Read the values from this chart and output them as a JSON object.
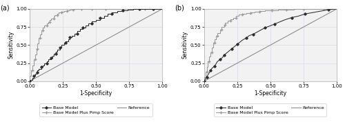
{
  "fig_width": 5.0,
  "fig_height": 1.9,
  "dpi": 100,
  "background_color": "#ffffff",
  "plot_bg_color": "#f2f2f2",
  "panels": [
    "(a)",
    "(b)"
  ],
  "xlabel": "1-Specificity",
  "ylabel": "Sensitivity",
  "xlim": [
    0.0,
    1.0
  ],
  "ylim": [
    0.0,
    1.0
  ],
  "xticks": [
    0.0,
    0.25,
    0.5,
    0.75,
    1.0
  ],
  "yticks": [
    0.0,
    0.25,
    0.5,
    0.75,
    1.0
  ],
  "tick_fontsize": 5,
  "axis_label_fontsize": 5.5,
  "panel_label_fontsize": 7,
  "legend_fontsize": 4.5,
  "line_dark_color": "#2d2d2d",
  "line_light_color": "#999999",
  "reference_color": "#888888",
  "marker_dark": "D",
  "marker_light": "+",
  "linewidth": 0.75,
  "marker_size_dark": 1.8,
  "marker_size_light": 3.0,
  "grid_color": "#d9d9e8",
  "legend_entries": [
    "Base Model",
    "Base Model Plus Pimp Score",
    "Reference"
  ],
  "panel_a": {
    "base_model_fpr": [
      0.0,
      0.0,
      0.02,
      0.02,
      0.03,
      0.03,
      0.04,
      0.04,
      0.05,
      0.05,
      0.06,
      0.06,
      0.07,
      0.07,
      0.09,
      0.09,
      0.1,
      0.1,
      0.11,
      0.11,
      0.13,
      0.13,
      0.14,
      0.14,
      0.16,
      0.16,
      0.17,
      0.17,
      0.18,
      0.18,
      0.2,
      0.2,
      0.21,
      0.21,
      0.23,
      0.23,
      0.24,
      0.24,
      0.26,
      0.26,
      0.27,
      0.27,
      0.29,
      0.29,
      0.3,
      0.3,
      0.32,
      0.32,
      0.34,
      0.34,
      0.36,
      0.36,
      0.38,
      0.38,
      0.4,
      0.4,
      0.42,
      0.42,
      0.44,
      0.44,
      0.47,
      0.47,
      0.5,
      0.5,
      0.53,
      0.53,
      0.56,
      0.56,
      0.59,
      0.59,
      0.62,
      0.62,
      0.66,
      0.66,
      0.7,
      0.7,
      0.74,
      0.74,
      0.78,
      0.78,
      0.83,
      0.83,
      0.88,
      0.88,
      0.93,
      0.93,
      1.0,
      1.0
    ],
    "base_model_tpr": [
      0.0,
      0.02,
      0.02,
      0.05,
      0.05,
      0.07,
      0.07,
      0.1,
      0.1,
      0.12,
      0.12,
      0.15,
      0.15,
      0.17,
      0.17,
      0.2,
      0.2,
      0.22,
      0.22,
      0.25,
      0.25,
      0.27,
      0.27,
      0.3,
      0.3,
      0.32,
      0.32,
      0.35,
      0.35,
      0.38,
      0.38,
      0.41,
      0.41,
      0.44,
      0.44,
      0.47,
      0.47,
      0.5,
      0.5,
      0.53,
      0.53,
      0.55,
      0.55,
      0.58,
      0.58,
      0.61,
      0.61,
      0.63,
      0.63,
      0.66,
      0.66,
      0.69,
      0.69,
      0.72,
      0.72,
      0.74,
      0.74,
      0.77,
      0.77,
      0.8,
      0.8,
      0.83,
      0.83,
      0.85,
      0.85,
      0.88,
      0.88,
      0.9,
      0.9,
      0.93,
      0.93,
      0.95,
      0.95,
      0.97,
      0.97,
      0.98,
      0.98,
      0.99,
      0.99,
      1.0,
      1.0,
      1.0,
      1.0,
      1.0,
      1.0,
      1.0,
      1.0,
      1.0
    ],
    "pimp_model_fpr": [
      0.0,
      0.0,
      0.01,
      0.01,
      0.02,
      0.02,
      0.03,
      0.03,
      0.04,
      0.04,
      0.05,
      0.05,
      0.06,
      0.06,
      0.07,
      0.07,
      0.08,
      0.08,
      0.09,
      0.09,
      0.1,
      0.1,
      0.11,
      0.11,
      0.13,
      0.13,
      0.14,
      0.14,
      0.15,
      0.15,
      0.16,
      0.16,
      0.18,
      0.18,
      0.19,
      0.19,
      0.21,
      0.21,
      0.22,
      0.22,
      0.24,
      0.24,
      0.26,
      0.26,
      0.28,
      0.28,
      0.3,
      0.3,
      0.33,
      0.33,
      0.36,
      0.36,
      0.39,
      0.39,
      0.43,
      0.43,
      0.47,
      0.47,
      0.52,
      0.52,
      0.57,
      0.57,
      0.63,
      0.63,
      0.7,
      0.7,
      0.78,
      0.78,
      0.87,
      0.87,
      1.0,
      1.0
    ],
    "pimp_model_tpr": [
      0.0,
      0.07,
      0.07,
      0.15,
      0.15,
      0.22,
      0.22,
      0.3,
      0.3,
      0.37,
      0.37,
      0.45,
      0.45,
      0.52,
      0.52,
      0.6,
      0.6,
      0.65,
      0.65,
      0.7,
      0.7,
      0.74,
      0.74,
      0.77,
      0.77,
      0.8,
      0.8,
      0.82,
      0.82,
      0.85,
      0.85,
      0.87,
      0.87,
      0.89,
      0.89,
      0.91,
      0.91,
      0.93,
      0.93,
      0.95,
      0.95,
      0.96,
      0.96,
      0.97,
      0.97,
      0.98,
      0.98,
      0.99,
      0.99,
      1.0,
      1.0,
      1.0,
      1.0,
      1.0,
      1.0,
      1.0,
      1.0,
      1.0,
      1.0,
      1.0,
      1.0,
      1.0,
      1.0,
      1.0,
      1.0,
      1.0,
      1.0,
      1.0,
      1.0,
      1.0,
      1.0,
      1.0
    ]
  },
  "panel_b": {
    "base_model_fpr": [
      0.0,
      0.0,
      0.01,
      0.01,
      0.02,
      0.02,
      0.03,
      0.03,
      0.04,
      0.04,
      0.05,
      0.05,
      0.06,
      0.06,
      0.08,
      0.08,
      0.09,
      0.09,
      0.1,
      0.1,
      0.12,
      0.12,
      0.14,
      0.14,
      0.15,
      0.15,
      0.17,
      0.17,
      0.19,
      0.19,
      0.21,
      0.21,
      0.23,
      0.23,
      0.25,
      0.25,
      0.27,
      0.27,
      0.29,
      0.29,
      0.32,
      0.32,
      0.34,
      0.34,
      0.37,
      0.37,
      0.4,
      0.4,
      0.43,
      0.43,
      0.46,
      0.46,
      0.49,
      0.49,
      0.53,
      0.53,
      0.57,
      0.57,
      0.61,
      0.61,
      0.66,
      0.66,
      0.71,
      0.71,
      0.76,
      0.76,
      0.82,
      0.82,
      0.88,
      0.88,
      0.94,
      0.94,
      1.0,
      1.0
    ],
    "base_model_tpr": [
      0.0,
      0.0,
      0.03,
      0.03,
      0.06,
      0.06,
      0.09,
      0.09,
      0.12,
      0.12,
      0.15,
      0.15,
      0.18,
      0.18,
      0.21,
      0.21,
      0.24,
      0.24,
      0.27,
      0.27,
      0.3,
      0.3,
      0.33,
      0.33,
      0.36,
      0.36,
      0.39,
      0.39,
      0.42,
      0.42,
      0.45,
      0.45,
      0.48,
      0.48,
      0.51,
      0.51,
      0.54,
      0.54,
      0.57,
      0.57,
      0.6,
      0.6,
      0.63,
      0.63,
      0.65,
      0.65,
      0.68,
      0.68,
      0.71,
      0.71,
      0.74,
      0.74,
      0.76,
      0.76,
      0.79,
      0.79,
      0.82,
      0.82,
      0.85,
      0.85,
      0.88,
      0.88,
      0.9,
      0.9,
      0.93,
      0.93,
      0.95,
      0.95,
      0.97,
      0.97,
      0.99,
      0.99,
      1.0,
      1.0
    ],
    "pimp_model_fpr": [
      0.0,
      0.0,
      0.01,
      0.01,
      0.02,
      0.02,
      0.03,
      0.03,
      0.04,
      0.04,
      0.05,
      0.05,
      0.06,
      0.06,
      0.07,
      0.07,
      0.08,
      0.08,
      0.09,
      0.09,
      0.1,
      0.1,
      0.12,
      0.12,
      0.13,
      0.13,
      0.15,
      0.15,
      0.16,
      0.16,
      0.18,
      0.18,
      0.2,
      0.2,
      0.22,
      0.22,
      0.24,
      0.24,
      0.26,
      0.26,
      0.29,
      0.29,
      0.32,
      0.32,
      0.35,
      0.35,
      0.38,
      0.38,
      0.42,
      0.42,
      0.46,
      0.46,
      0.51,
      0.51,
      0.56,
      0.56,
      0.62,
      0.62,
      0.68,
      0.68,
      0.75,
      0.75,
      0.82,
      0.82,
      0.9,
      0.9,
      1.0,
      1.0
    ],
    "pimp_model_tpr": [
      0.0,
      0.06,
      0.06,
      0.13,
      0.13,
      0.2,
      0.2,
      0.27,
      0.27,
      0.34,
      0.34,
      0.4,
      0.4,
      0.47,
      0.47,
      0.53,
      0.53,
      0.58,
      0.58,
      0.63,
      0.63,
      0.67,
      0.67,
      0.71,
      0.71,
      0.75,
      0.75,
      0.78,
      0.78,
      0.81,
      0.81,
      0.84,
      0.84,
      0.86,
      0.86,
      0.88,
      0.88,
      0.9,
      0.9,
      0.92,
      0.92,
      0.93,
      0.93,
      0.94,
      0.94,
      0.95,
      0.95,
      0.96,
      0.96,
      0.97,
      0.97,
      0.98,
      0.98,
      0.98,
      0.98,
      0.99,
      0.99,
      0.99,
      0.99,
      1.0,
      1.0,
      1.0,
      1.0,
      1.0,
      1.0,
      1.0,
      1.0,
      1.0
    ]
  }
}
